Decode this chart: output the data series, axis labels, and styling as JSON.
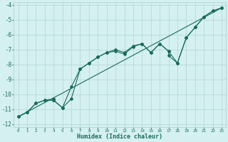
{
  "xlabel": "Humidex (Indice chaleur)",
  "ylabel": "",
  "background_color": "#d4f0f0",
  "grid_color": "#b8dada",
  "line_color": "#1a6b5a",
  "xlim": [
    -0.5,
    23.5
  ],
  "ylim": [
    -12.2,
    -3.8
  ],
  "xticks": [
    0,
    1,
    2,
    3,
    4,
    5,
    6,
    7,
    8,
    9,
    10,
    11,
    12,
    13,
    14,
    15,
    16,
    17,
    18,
    19,
    20,
    21,
    22,
    23
  ],
  "yticks": [
    -12,
    -11,
    -10,
    -9,
    -8,
    -7,
    -6,
    -5,
    -4
  ],
  "series1_x": [
    0,
    1,
    2,
    3,
    4,
    5,
    6,
    7,
    8,
    9,
    10,
    11,
    12,
    13,
    14,
    15,
    16,
    17,
    18,
    19,
    20,
    21,
    22,
    23
  ],
  "series1_y": [
    -11.5,
    -11.2,
    -10.6,
    -10.4,
    -10.4,
    -10.9,
    -9.5,
    -8.3,
    -7.9,
    -7.5,
    -7.2,
    -7.1,
    -7.3,
    -6.8,
    -6.6,
    -7.2,
    -6.6,
    -7.1,
    -7.9,
    -6.2,
    -5.5,
    -4.8,
    -4.4,
    -4.2
  ],
  "series2_x": [
    0,
    1,
    2,
    3,
    4,
    4,
    5,
    6,
    7,
    8,
    9,
    10,
    11,
    12,
    13,
    14,
    15,
    16,
    17,
    17,
    18,
    19,
    20,
    21,
    22,
    23
  ],
  "series2_y": [
    -11.5,
    -11.2,
    -10.6,
    -10.4,
    -10.3,
    -10.4,
    -10.9,
    -10.3,
    -8.3,
    -7.9,
    -7.5,
    -7.2,
    -7.0,
    -7.2,
    -6.75,
    -6.6,
    -7.2,
    -6.6,
    -7.1,
    -7.4,
    -7.9,
    -6.2,
    -5.5,
    -4.8,
    -4.4,
    -4.2
  ],
  "series3_x": [
    0,
    23
  ],
  "series3_y": [
    -11.5,
    -4.2
  ]
}
